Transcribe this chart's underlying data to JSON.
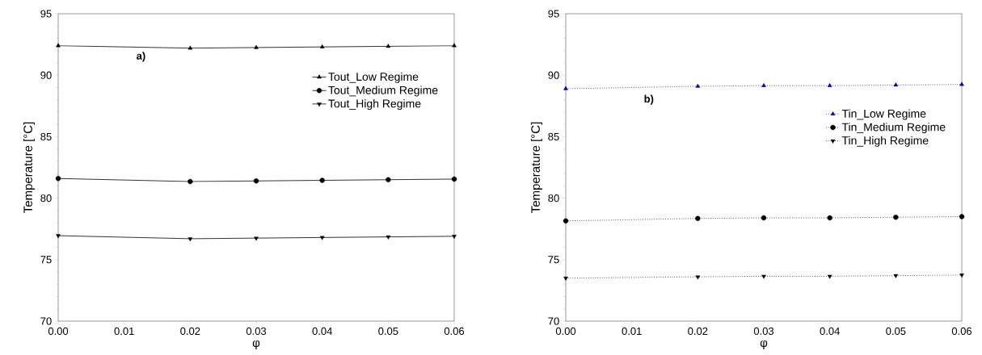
{
  "chart_data": [
    {
      "type": "line",
      "xlabel": "φ",
      "ylabel": "Temperature [°C]",
      "annotations": [
        "a)"
      ],
      "x": [
        0,
        0.02,
        0.03,
        0.04,
        0.05,
        0.06
      ],
      "series": [
        {
          "name": "Tout_Low Regime",
          "color": "#000000",
          "marker": "triangle",
          "values": [
            92.4,
            92.2,
            92.25,
            92.3,
            92.35,
            92.4
          ]
        },
        {
          "name": "Tout_Medium Regime",
          "color": "#000000",
          "marker": "circle",
          "values": [
            81.6,
            81.35,
            81.4,
            81.45,
            81.5,
            81.55
          ]
        },
        {
          "name": "Tout_High Regime",
          "color": "#000000",
          "marker": "triangle-down",
          "values": [
            76.95,
            76.7,
            76.75,
            76.8,
            76.85,
            76.9
          ]
        }
      ],
      "xlim": [
        0,
        0.06
      ],
      "xticks": [
        {
          "value": 0,
          "label": "0.00"
        },
        0.01,
        0.02,
        0.03,
        0.04,
        0.05,
        0.06
      ],
      "ylim": [
        70,
        95
      ],
      "yticks": [
        70,
        75,
        80,
        85,
        90,
        95
      ],
      "line_style": "solid",
      "legend": "top right",
      "grid": false
    },
    {
      "type": "line",
      "xlabel": "φ",
      "ylabel": "Temperature [°C]",
      "annotations": [
        "b)"
      ],
      "x": [
        0,
        0.02,
        0.03,
        0.04,
        0.05,
        0.06
      ],
      "series": [
        {
          "name": "Tin_Low Regime",
          "color": "#0000aa",
          "marker": "triangle",
          "values": [
            88.9,
            89.1,
            89.15,
            89.15,
            89.2,
            89.25
          ]
        },
        {
          "name": "Tin_Medium Regime",
          "color": "#000000",
          "marker": "circle",
          "values": [
            78.15,
            78.35,
            78.4,
            78.4,
            78.45,
            78.5
          ]
        },
        {
          "name": "Tin_High Regime",
          "color": "#000000",
          "marker": "triangle-down",
          "values": [
            73.5,
            73.6,
            73.65,
            73.65,
            73.7,
            73.75
          ]
        }
      ],
      "xlim": [
        0,
        0.06
      ],
      "xticks": [
        {
          "value": 0,
          "label": "0.00"
        },
        0.01,
        0.02,
        0.03,
        0.04,
        0.05,
        0.06
      ],
      "ylim": [
        70,
        95
      ],
      "yticks": [
        70,
        75,
        80,
        85,
        90,
        95
      ],
      "line_style": "dotted",
      "legend": "top right",
      "grid": false
    }
  ]
}
